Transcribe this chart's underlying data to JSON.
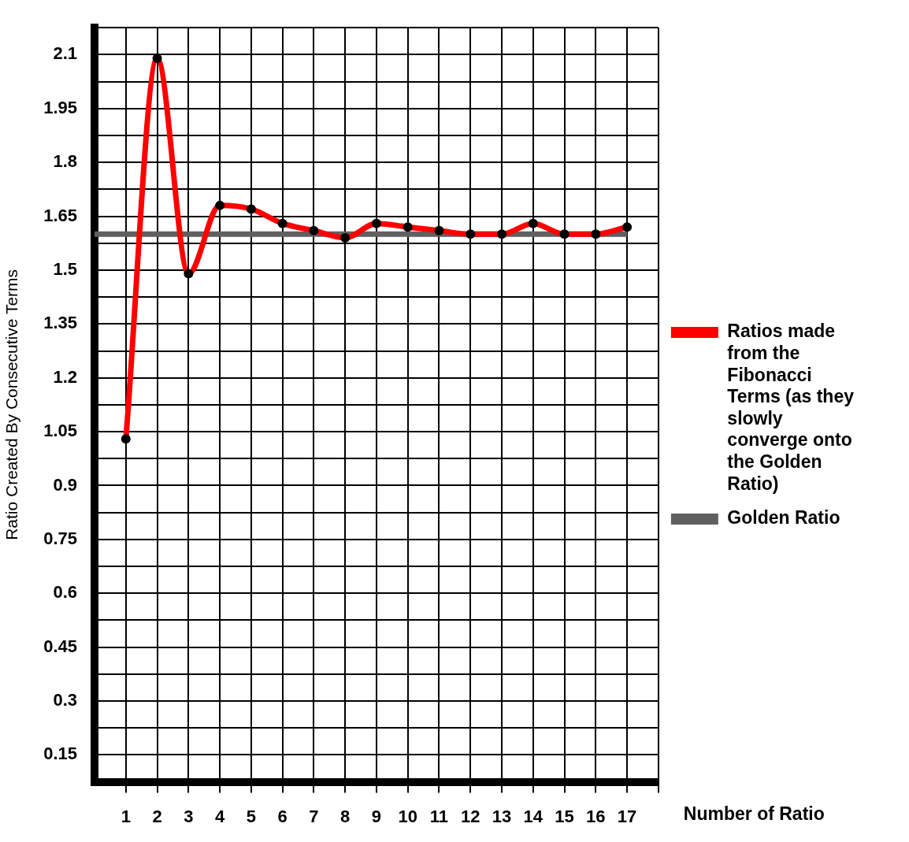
{
  "chart_data": {
    "type": "line",
    "xlabel": "Number of Ratio",
    "ylabel": "Ratio Created By Consecutive Terms",
    "xlim": [
      0,
      18
    ],
    "xticks": [
      1,
      2,
      3,
      4,
      5,
      6,
      7,
      8,
      9,
      10,
      11,
      12,
      13,
      14,
      15,
      16,
      17,
      {
        "value": 18,
        "label": null
      }
    ],
    "ylim": [
      0.075,
      2.175
    ],
    "yticks": [
      0.15,
      {
        "value": 0.225,
        "label": null
      },
      0.3,
      {
        "value": 0.375,
        "label": null
      },
      0.45,
      {
        "value": 0.525,
        "label": null
      },
      0.6,
      {
        "value": 0.675,
        "label": null
      },
      0.75,
      {
        "value": 0.825,
        "label": null
      },
      0.9,
      {
        "value": 0.975,
        "label": null
      },
      1.05,
      {
        "value": 1.125,
        "label": null
      },
      1.2,
      {
        "value": 1.275,
        "label": null
      },
      1.35,
      {
        "value": 1.425,
        "label": null
      },
      1.5,
      {
        "value": 1.575,
        "label": null
      },
      1.65,
      {
        "value": 1.725,
        "label": null
      },
      1.8,
      {
        "value": 1.875,
        "label": null
      },
      1.95,
      {
        "value": 2.025,
        "label": null
      },
      2.1,
      {
        "value": 2.175,
        "label": null
      }
    ],
    "grid": true,
    "legend": "right",
    "marker": "circle",
    "line_style": "solid",
    "series": [
      {
        "name": "Golden Ratio",
        "color": "#606060",
        "x": [
          0,
          17
        ],
        "values": [
          1.6,
          1.6
        ],
        "marker": "none"
      },
      {
        "name": "Ratios made from the Fibonacci Terms (as they slowly converge onto the Golden Ratio)",
        "color": "#ff0000",
        "x": [
          1,
          2,
          3,
          4,
          5,
          6,
          7,
          8,
          9,
          10,
          11,
          12,
          13,
          14,
          15,
          16,
          17
        ],
        "values": [
          1.03,
          2.09,
          1.49,
          1.68,
          1.67,
          1.63,
          1.61,
          1.59,
          1.63,
          1.62,
          1.61,
          1.6,
          1.6,
          1.63,
          1.6,
          1.6,
          1.62
        ]
      }
    ]
  }
}
